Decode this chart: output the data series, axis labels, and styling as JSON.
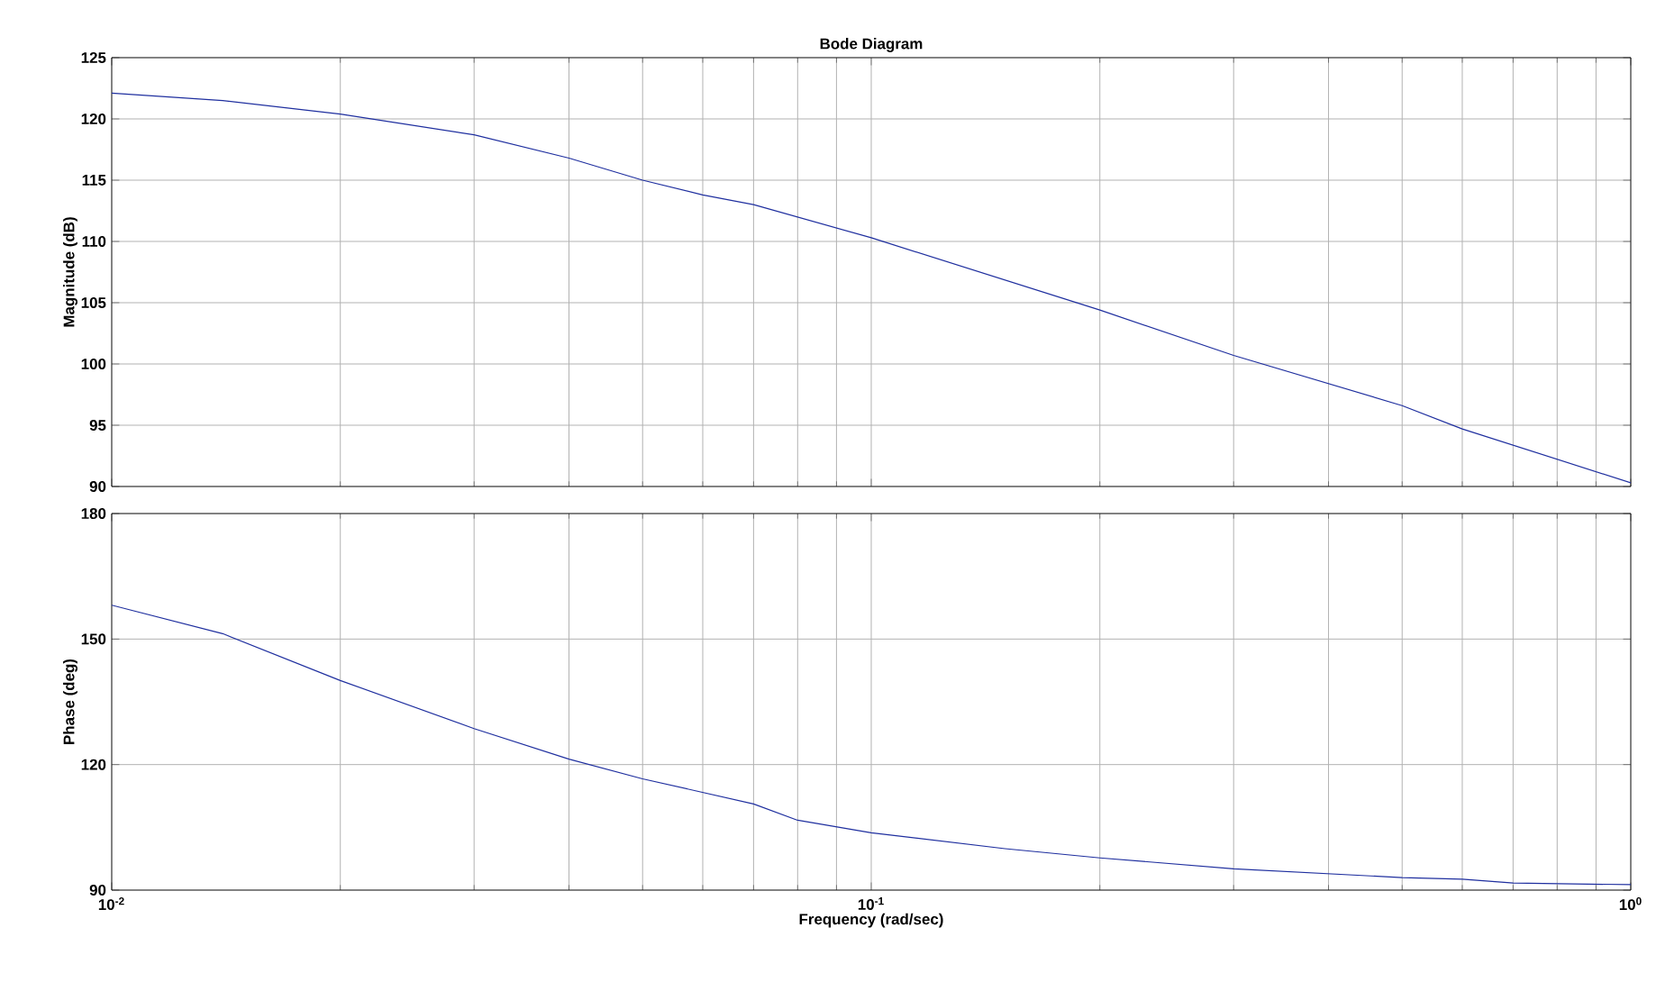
{
  "chart_data": [
    {
      "type": "line",
      "title": "Bode Diagram",
      "ylabel": "Magnitude (dB)",
      "log": "x",
      "grid": true,
      "tick_labels": "y",
      "x": [
        0.01,
        0.014,
        0.02,
        0.03,
        0.04,
        0.05,
        0.06,
        0.07,
        0.1,
        0.2,
        0.3,
        0.5,
        0.6,
        1
      ],
      "series": [
        {
          "color": "#1f2f9f",
          "values": [
            122.1,
            121.5,
            120.4,
            118.7,
            116.8,
            115,
            113.8,
            113,
            110.3,
            104.4,
            100.7,
            96.6,
            94.7,
            90.3
          ]
        }
      ],
      "xlim": [
        0.01,
        1
      ],
      "ylim": [
        90,
        125
      ],
      "xticks": [
        {
          "value": 0.01,
          "label": null
        },
        {
          "value": 0.1,
          "label": null
        },
        {
          "value": 1,
          "label": null
        }
      ],
      "yticks": [
        90,
        95,
        100,
        105,
        110,
        115,
        120,
        125
      ]
    },
    {
      "type": "line",
      "xlabel": "Frequency  (rad/sec)",
      "ylabel": "Phase (deg)",
      "log": "x",
      "grid": true,
      "x": [
        0.01,
        0.014,
        0.02,
        0.03,
        0.04,
        0.05,
        0.07,
        0.08,
        0.1,
        0.15,
        0.2,
        0.3,
        0.5,
        0.6,
        0.7,
        1
      ],
      "series": [
        {
          "color": "#1f2f9f",
          "values": [
            158.1,
            151.3,
            140.1,
            128.6,
            121.3,
            116.6,
            110.6,
            106.7,
            103.7,
            99.9,
            97.7,
            95.1,
            93,
            92.6,
            91.7,
            91.3
          ]
        }
      ],
      "xlim": [
        0.01,
        1
      ],
      "ylim": [
        90,
        180
      ],
      "xticks": [
        {
          "value": 0.01,
          "label": "10$^{-2}$"
        },
        {
          "value": 0.1,
          "label": "10$^{-1}$"
        },
        {
          "value": 1,
          "label": "10$^{0}$"
        }
      ],
      "yticks": [
        90,
        120,
        150,
        180
      ]
    }
  ]
}
